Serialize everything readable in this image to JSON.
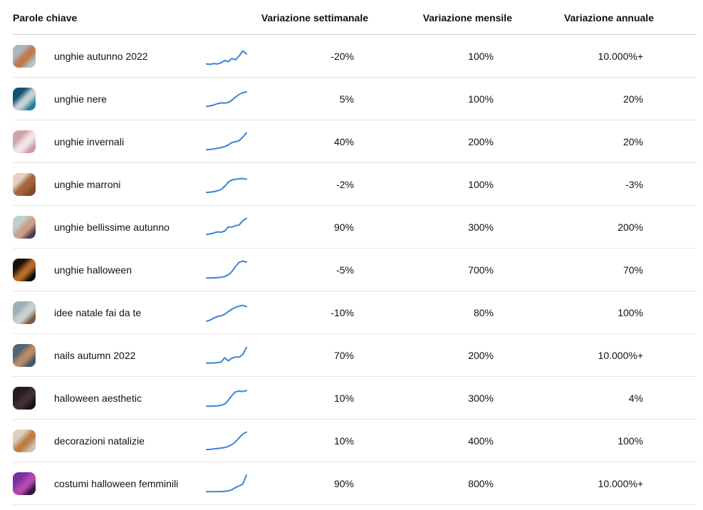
{
  "colors": {
    "sparkline": "#3b82d8",
    "header_divider": "#cfcfcf",
    "row_divider": "#e4e4e4",
    "text": "#111111",
    "background": "#ffffff"
  },
  "table": {
    "header": {
      "keyword": "Parole chiave",
      "weekly": "Variazione settimanale",
      "monthly": "Variazione mensile",
      "annual": "Variazione annuale"
    },
    "rows": [
      {
        "keyword": "unghie autunno 2022",
        "weekly": "-20%",
        "monthly": "100%",
        "annual": "10.000%+",
        "thumb_name": "autumn-nails-hand",
        "thumb_colors": [
          "#a9b7c4",
          "#c07a4e",
          "#b6c3cd"
        ],
        "sparkline": [
          10,
          8,
          12,
          10,
          16,
          28,
          22,
          38,
          32,
          52,
          78,
          62
        ]
      },
      {
        "keyword": "unghie nere",
        "weekly": "5%",
        "monthly": "100%",
        "annual": "20%",
        "thumb_name": "black-nails-teal",
        "thumb_colors": [
          "#15506e",
          "#c4d2d3",
          "#1f7f9a"
        ],
        "sparkline": [
          12,
          14,
          19,
          26,
          30,
          29,
          32,
          44,
          60,
          74,
          83,
          87
        ]
      },
      {
        "keyword": "unghie invernali",
        "weekly": "40%",
        "monthly": "200%",
        "annual": "20%",
        "thumb_name": "winter-nails-pink",
        "thumb_colors": [
          "#cfa3ad",
          "#f0e4e6",
          "#c89aa4"
        ],
        "sparkline": [
          8,
          10,
          13,
          16,
          20,
          25,
          33,
          46,
          50,
          56,
          74,
          96
        ]
      },
      {
        "keyword": "unghie marroni",
        "weekly": "-2%",
        "monthly": "100%",
        "annual": "-3%",
        "thumb_name": "brown-nails-hand",
        "thumb_colors": [
          "#e3d3c2",
          "#a8633c",
          "#7a4a30"
        ],
        "sparkline": [
          8,
          10,
          13,
          17,
          24,
          40,
          62,
          74,
          77,
          80,
          81,
          77
        ]
      },
      {
        "keyword": "unghie bellissime autunno",
        "weekly": "90%",
        "monthly": "300%",
        "annual": "200%",
        "thumb_name": "beautiful-autumn-nails",
        "thumb_colors": [
          "#bfd3c9",
          "#c9a08a",
          "#4f3a49"
        ],
        "sparkline": [
          12,
          15,
          20,
          26,
          24,
          30,
          52,
          50,
          58,
          62,
          84,
          96
        ]
      },
      {
        "keyword": "unghie halloween",
        "weekly": "-5%",
        "monthly": "700%",
        "annual": "70%",
        "thumb_name": "halloween-nails-dark",
        "thumb_colors": [
          "#1a1209",
          "#b86a2a",
          "#0d0a06"
        ],
        "sparkline": [
          8,
          8,
          9,
          10,
          12,
          16,
          24,
          42,
          68,
          90,
          96,
          91
        ]
      },
      {
        "keyword": "idee natale fai da te",
        "weekly": "-10%",
        "monthly": "80%",
        "annual": "100%",
        "thumb_name": "diy-christmas-crafts",
        "thumb_colors": [
          "#9fb0b2",
          "#c8cfcf",
          "#7a5844"
        ],
        "sparkline": [
          5,
          12,
          22,
          30,
          34,
          42,
          56,
          68,
          78,
          84,
          88,
          82
        ]
      },
      {
        "keyword": "nails autumn 2022",
        "weekly": "70%",
        "monthly": "200%",
        "annual": "10.000%+",
        "thumb_name": "autumn-nails-blue-background",
        "thumb_colors": [
          "#4f6678",
          "#b98a66",
          "#3f5568"
        ],
        "sparkline": [
          10,
          10,
          11,
          13,
          15,
          38,
          22,
          36,
          42,
          41,
          55,
          92
        ]
      },
      {
        "keyword": "halloween aesthetic",
        "weekly": "10%",
        "monthly": "300%",
        "annual": "4%",
        "thumb_name": "dark-forest",
        "thumb_colors": [
          "#241b1e",
          "#3f3034",
          "#1a1114"
        ],
        "sparkline": [
          8,
          8,
          9,
          10,
          13,
          20,
          38,
          64,
          83,
          87,
          84,
          90
        ]
      },
      {
        "keyword": "decorazioni natalizie",
        "weekly": "10%",
        "monthly": "400%",
        "annual": "100%",
        "thumb_name": "christmas-decorations",
        "thumb_colors": [
          "#d9cfc2",
          "#c07e42",
          "#cfc2b2"
        ],
        "sparkline": [
          5,
          6,
          8,
          10,
          13,
          16,
          21,
          31,
          46,
          66,
          86,
          96
        ]
      },
      {
        "keyword": "costumi halloween femminili",
        "weekly": "90%",
        "monthly": "800%",
        "annual": "10.000%+",
        "thumb_name": "purple-party-costumes",
        "thumb_colors": [
          "#7a2fa0",
          "#b646b0",
          "#2e1440"
        ],
        "sparkline": [
          8,
          8,
          8,
          9,
          9,
          10,
          12,
          18,
          30,
          38,
          48,
          95
        ]
      }
    ]
  }
}
